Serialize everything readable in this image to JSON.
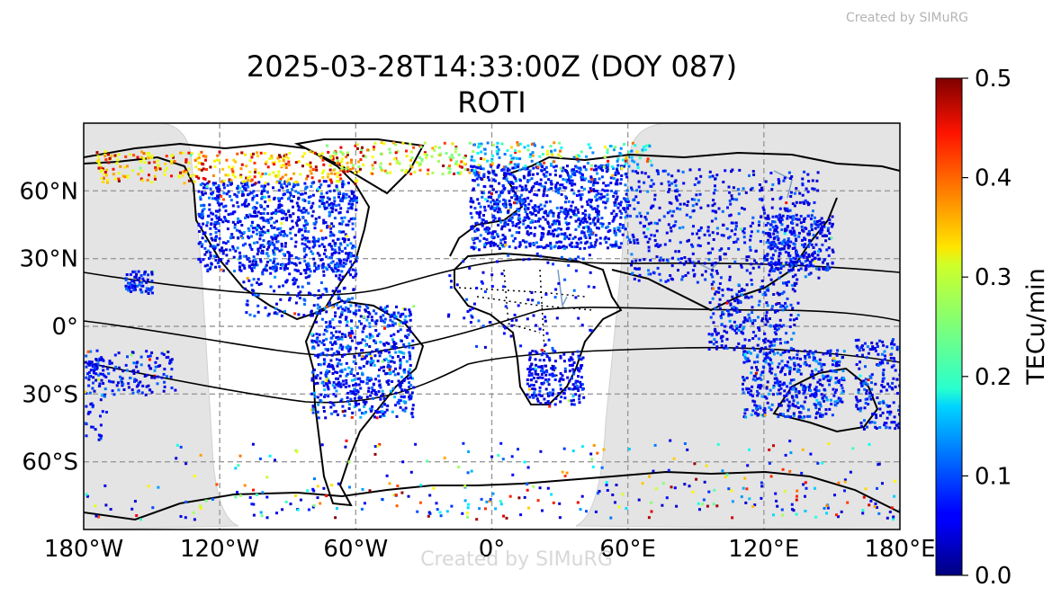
{
  "header": {
    "watermark": "Created by SIMuRG"
  },
  "chart_data": {
    "type": "scatter",
    "title": "2025-03-28T14:33:00Z (DOY 087)",
    "subtitle": "ROTI",
    "x_ticks": [
      "180°W",
      "120°W",
      "60°W",
      "0°",
      "60°E",
      "120°E",
      "180°E"
    ],
    "x_tick_values": [
      -180,
      -120,
      -60,
      0,
      60,
      120,
      180
    ],
    "y_ticks": [
      "60°N",
      "30°N",
      "0°",
      "30°S",
      "60°S"
    ],
    "y_tick_values": [
      60,
      30,
      0,
      -30,
      -60
    ],
    "xlim": [
      -180,
      180
    ],
    "ylim": [
      -90,
      90
    ],
    "grid": true,
    "map_projection": "plate carree",
    "night_shading": "gray",
    "colormap": "jet",
    "colorbar": {
      "label": "TECu/min",
      "range": [
        0.0,
        0.5
      ],
      "ticks": [
        "0.0",
        "0.1",
        "0.2",
        "0.3",
        "0.4",
        "0.5"
      ],
      "tick_values": [
        0.0,
        0.1,
        0.2,
        0.3,
        0.4,
        0.5
      ]
    },
    "point_clusters": [
      {
        "name": "north-america",
        "lon": [
          -130,
          -60
        ],
        "lat": [
          25,
          65
        ],
        "n": 900,
        "val": [
          0.04,
          0.14
        ]
      },
      {
        "name": "alaska-canada-arctic",
        "lon": [
          -175,
          -60
        ],
        "lat": [
          64,
          78
        ],
        "n": 320,
        "val": [
          0.3,
          0.5
        ]
      },
      {
        "name": "greenland-arctic",
        "lon": [
          -75,
          -10
        ],
        "lat": [
          68,
          82
        ],
        "n": 160,
        "val": [
          0.25,
          0.5
        ]
      },
      {
        "name": "europe",
        "lon": [
          -10,
          60
        ],
        "lat": [
          35,
          72
        ],
        "n": 950,
        "val": [
          0.04,
          0.14
        ]
      },
      {
        "name": "europe-arctic",
        "lon": [
          -10,
          70
        ],
        "lat": [
          70,
          82
        ],
        "n": 160,
        "val": [
          0.12,
          0.5
        ]
      },
      {
        "name": "south-america",
        "lon": [
          -80,
          -35
        ],
        "lat": [
          -40,
          10
        ],
        "n": 650,
        "val": [
          0.04,
          0.16
        ]
      },
      {
        "name": "central-america",
        "lon": [
          -110,
          -60
        ],
        "lat": [
          5,
          30
        ],
        "n": 180,
        "val": [
          0.04,
          0.14
        ]
      },
      {
        "name": "asia",
        "lon": [
          60,
          145
        ],
        "lat": [
          20,
          70
        ],
        "n": 520,
        "val": [
          0.04,
          0.13
        ]
      },
      {
        "name": "japan-east-asia",
        "lon": [
          120,
          150
        ],
        "lat": [
          25,
          50
        ],
        "n": 260,
        "val": [
          0.04,
          0.12
        ]
      },
      {
        "name": "southeast-asia",
        "lon": [
          95,
          135
        ],
        "lat": [
          -10,
          20
        ],
        "n": 260,
        "val": [
          0.04,
          0.14
        ]
      },
      {
        "name": "australia",
        "lon": [
          110,
          155
        ],
        "lat": [
          -40,
          -10
        ],
        "n": 420,
        "val": [
          0.04,
          0.15
        ]
      },
      {
        "name": "new-zealand-pacific",
        "lon": [
          160,
          180
        ],
        "lat": [
          -45,
          -5
        ],
        "n": 180,
        "val": [
          0.04,
          0.14
        ]
      },
      {
        "name": "southern-africa",
        "lon": [
          15,
          40
        ],
        "lat": [
          -35,
          -10
        ],
        "n": 200,
        "val": [
          0.04,
          0.12
        ]
      },
      {
        "name": "africa-sparse",
        "lon": [
          -20,
          45
        ],
        "lat": [
          -10,
          35
        ],
        "n": 90,
        "val": [
          0.04,
          0.12
        ]
      },
      {
        "name": "hawaii",
        "lon": [
          -162,
          -150
        ],
        "lat": [
          15,
          25
        ],
        "n": 70,
        "val": [
          0.04,
          0.12
        ]
      },
      {
        "name": "pacific-south",
        "lon": [
          -180,
          -140
        ],
        "lat": [
          -30,
          -10
        ],
        "n": 140,
        "val": [
          0.04,
          0.14
        ]
      },
      {
        "name": "pacific-west-edge",
        "lon": [
          -180,
          -170
        ],
        "lat": [
          -50,
          -10
        ],
        "n": 60,
        "val": [
          0.04,
          0.12
        ]
      },
      {
        "name": "antarctica",
        "lon": [
          -180,
          180
        ],
        "lat": [
          -85,
          -70
        ],
        "n": 220,
        "val": [
          0.04,
          0.5
        ]
      },
      {
        "name": "southern-ocean",
        "lon": [
          -140,
          180
        ],
        "lat": [
          -70,
          -50
        ],
        "n": 120,
        "val": [
          0.04,
          0.5
        ]
      }
    ]
  }
}
